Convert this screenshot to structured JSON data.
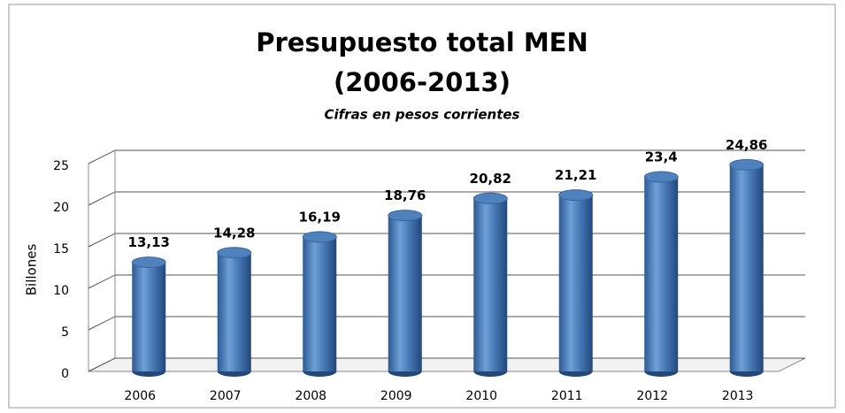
{
  "chart_data": {
    "type": "bar",
    "title": [
      "Presupuesto total MEN",
      "(2006-2013)"
    ],
    "subtitle": "Cifras en pesos corrientes",
    "y_label": "Billones",
    "categories": [
      "2006",
      "2007",
      "2008",
      "2009",
      "2010",
      "2011",
      "2012",
      "2013"
    ],
    "values": [
      13.13,
      14.28,
      16.19,
      18.76,
      20.82,
      21.21,
      23.4,
      24.86
    ],
    "value_labels": [
      "13,13",
      "14,28",
      "16,19",
      "18,76",
      "20,82",
      "21,21",
      "23,4",
      "24,86"
    ],
    "color": "#4f81bd",
    "ylim": [
      0,
      25
    ],
    "yticks": [
      0,
      5,
      10,
      15,
      20,
      25
    ],
    "grid": true
  }
}
